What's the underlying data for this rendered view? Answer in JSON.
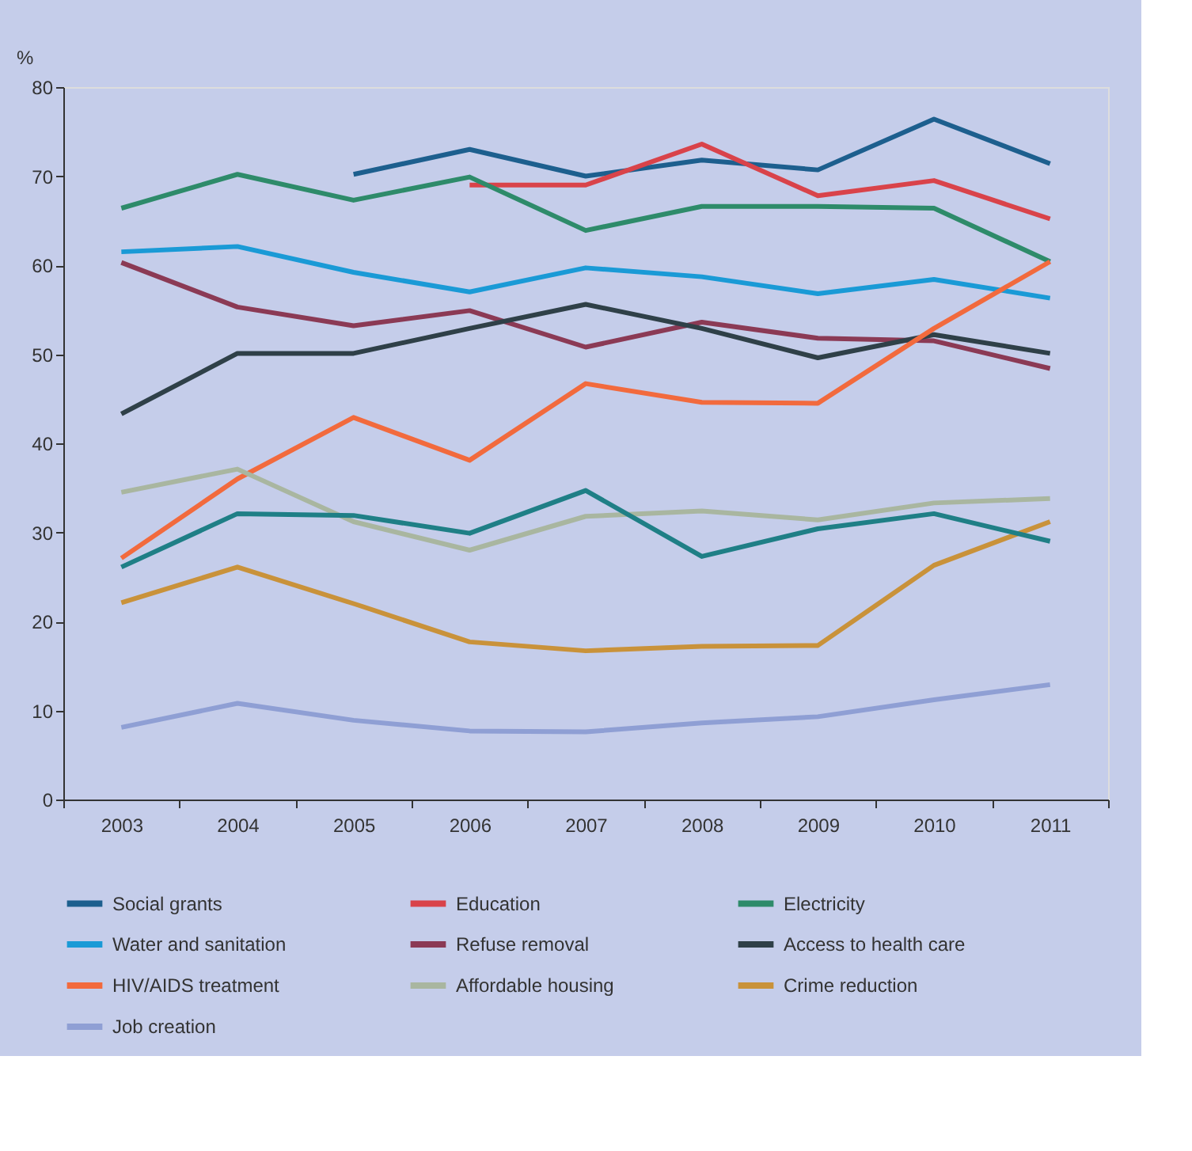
{
  "chart_data": {
    "type": "line",
    "ylabel": "%",
    "categories": [
      "2003",
      "2004",
      "2005",
      "2006",
      "2007",
      "2008",
      "2009",
      "2010",
      "2011"
    ],
    "ylim": [
      0,
      80
    ],
    "yticks": [
      0,
      10,
      20,
      30,
      40,
      50,
      60,
      70,
      80
    ],
    "grid": false,
    "legend": "bottom",
    "marker": "none",
    "line_style": "solid",
    "series": [
      {
        "name": "Social grants",
        "color": "#1d5f8e",
        "values": [
          null,
          null,
          70.2,
          73,
          70,
          71.8,
          70.7,
          76.4,
          71.4
        ]
      },
      {
        "name": "Education",
        "color": "#d9434a",
        "values": [
          null,
          null,
          null,
          69,
          69,
          73.6,
          67.8,
          69.5,
          65.2
        ]
      },
      {
        "name": "Electricity",
        "color": "#2e8b6a",
        "values": [
          66.4,
          70.2,
          67.3,
          69.9,
          63.9,
          66.6,
          66.6,
          66.4,
          60.4
        ]
      },
      {
        "name": "Water and sanitation",
        "color": "#1a9ad6",
        "values": [
          61.5,
          62.1,
          59.2,
          57,
          59.7,
          58.7,
          56.8,
          58.4,
          56.3
        ]
      },
      {
        "name": "Refuse removal",
        "color": "#8b3a55",
        "values": [
          60.3,
          55.3,
          53.2,
          54.9,
          50.8,
          53.6,
          51.8,
          51.5,
          48.4
        ]
      },
      {
        "name": "Access to health care",
        "color": "#2f4048",
        "values": [
          43.3,
          50.1,
          50.1,
          52.9,
          55.6,
          52.9,
          49.6,
          52.2,
          50.1
        ]
      },
      {
        "name": "HIV/AIDS treatment",
        "color": "#f26a3d",
        "values": [
          27.1,
          36,
          42.9,
          38.1,
          46.7,
          44.6,
          44.5,
          52.9,
          60.4
        ]
      },
      {
        "name": "Affordable housing",
        "color": "#a9b6a0",
        "values": [
          34.5,
          37.1,
          31.2,
          28,
          31.8,
          32.4,
          31.4,
          33.3,
          33.8
        ]
      },
      {
        "name": "Crime reduction",
        "color": "#c9923a",
        "values": [
          22.1,
          26.1,
          22,
          17.7,
          16.7,
          17.2,
          17.3,
          26.3,
          31.2
        ]
      },
      {
        "name": "Job creation",
        "color": "#8f9fd4",
        "values": [
          8.1,
          10.8,
          8.9,
          7.7,
          7.6,
          8.6,
          9.3,
          11.2,
          12.9
        ]
      },
      {
        "color": "#1f7f86",
        "values": [
          26.1,
          32.1,
          31.9,
          29.9,
          34.7,
          27.3,
          30.4,
          32.1,
          29
        ]
      }
    ]
  }
}
